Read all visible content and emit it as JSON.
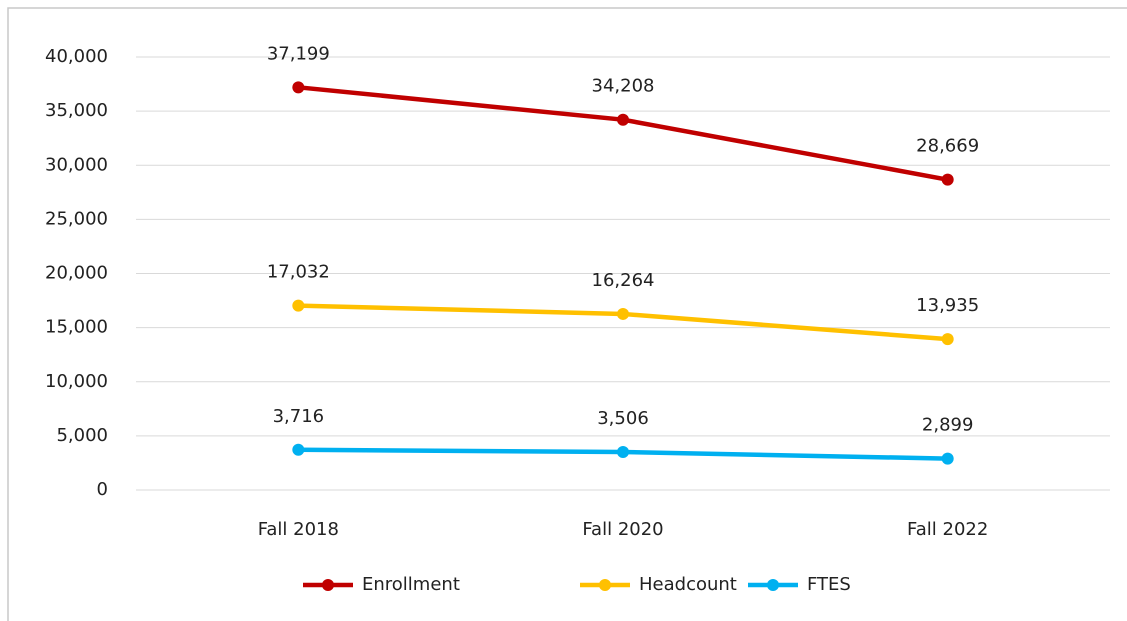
{
  "chart_data": {
    "type": "line",
    "categories": [
      "Fall 2018",
      "Fall 2020",
      "Fall 2022"
    ],
    "series": [
      {
        "name": "Enrollment",
        "color": "#c00000",
        "values": [
          37199,
          34208,
          28669
        ],
        "value_labels": [
          "37,199",
          "34,208",
          "28,669"
        ]
      },
      {
        "name": "Headcount",
        "color": "#ffc000",
        "values": [
          17032,
          16264,
          13935
        ],
        "value_labels": [
          "17,032",
          "16,264",
          "13,935"
        ]
      },
      {
        "name": "FTES",
        "color": "#00b0f0",
        "values": [
          3716,
          3506,
          2899
        ],
        "value_labels": [
          "3,716",
          "3,506",
          "2,899"
        ]
      }
    ],
    "ylim": [
      0,
      40000
    ],
    "yticks": [
      0,
      {
        "value": 5000,
        "label": "5,000"
      },
      {
        "value": 10000,
        "label": "10,000"
      },
      {
        "value": 15000,
        "label": "15,000"
      },
      {
        "value": 20000,
        "label": "20,000"
      },
      {
        "value": 25000,
        "label": "25,000"
      },
      {
        "value": 30000,
        "label": "30,000"
      },
      {
        "value": 35000,
        "label": "35,000"
      },
      {
        "value": 40000,
        "label": "40,000"
      }
    ],
    "grid": true,
    "legend": "bottom"
  }
}
